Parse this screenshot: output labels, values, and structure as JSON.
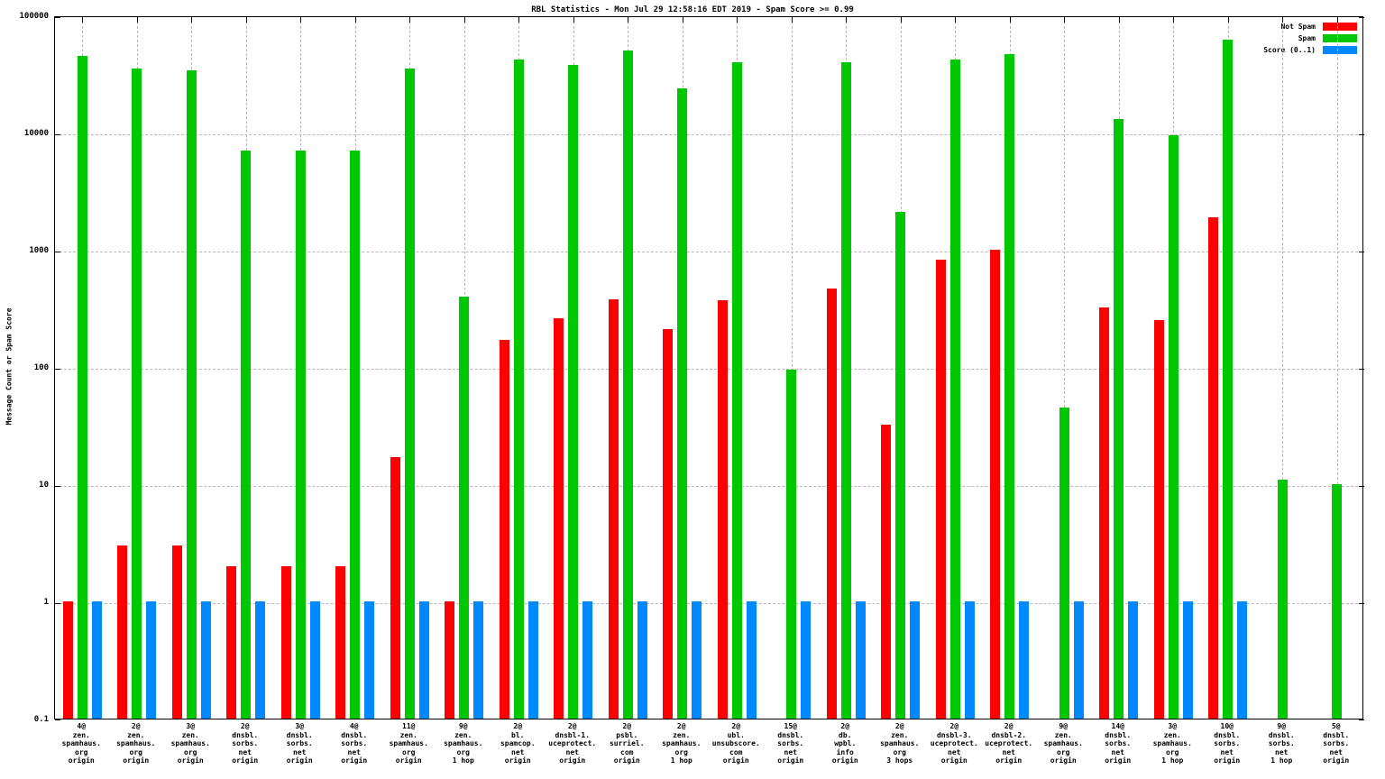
{
  "chart_data": {
    "type": "bar",
    "title": "RBL Statistics - Mon Jul 29 12:58:16 EDT 2019 - Spam Score >= 0.99",
    "ylabel": "Message Count or Spam Score",
    "y_scale": "log",
    "ylim": [
      0.1,
      100000
    ],
    "y_ticks": [
      "0.1",
      "1",
      "10",
      "100",
      "1000",
      "10000",
      "100000"
    ],
    "grid": true,
    "legend_position": "top-right",
    "colors": {
      "not_spam": "#ff0000",
      "spam": "#00c800",
      "score": "#0088ff",
      "grid": "#b8b8b8"
    },
    "legend": [
      {
        "label": "Not Spam",
        "color": "#ff0000"
      },
      {
        "label": "Spam",
        "color": "#00c800"
      },
      {
        "label": "Score (0..1)",
        "color": "#0088ff"
      }
    ],
    "categories": [
      [
        "4@",
        "zen.",
        "spamhaus.",
        "org",
        "origin"
      ],
      [
        "2@",
        "zen.",
        "spamhaus.",
        "org",
        "origin"
      ],
      [
        "3@",
        "zen.",
        "spamhaus.",
        "org",
        "origin"
      ],
      [
        "2@",
        "dnsbl.",
        "sorbs.",
        "net",
        "origin"
      ],
      [
        "3@",
        "dnsbl.",
        "sorbs.",
        "net",
        "origin"
      ],
      [
        "4@",
        "dnsbl.",
        "sorbs.",
        "net",
        "origin"
      ],
      [
        "11@",
        "zen.",
        "spamhaus.",
        "org",
        "origin"
      ],
      [
        "9@",
        "zen.",
        "spamhaus.",
        "org",
        "1 hop"
      ],
      [
        "2@",
        "bl.",
        "spamcop.",
        "net",
        "origin"
      ],
      [
        "2@",
        "dnsbl-1.",
        "uceprotect.",
        "net",
        "origin"
      ],
      [
        "2@",
        "psbl.",
        "surriel.",
        "com",
        "origin"
      ],
      [
        "2@",
        "zen.",
        "spamhaus.",
        "org",
        "1 hop"
      ],
      [
        "2@",
        "ubl.",
        "unsubscore.",
        "com",
        "origin"
      ],
      [
        "15@",
        "dnsbl.",
        "sorbs.",
        "net",
        "origin"
      ],
      [
        "2@",
        "db.",
        "wpbl.",
        "info",
        "origin"
      ],
      [
        "2@",
        "zen.",
        "spamhaus.",
        "org",
        "3 hops"
      ],
      [
        "2@",
        "dnsbl-3.",
        "uceprotect.",
        "net",
        "origin"
      ],
      [
        "2@",
        "dnsbl-2.",
        "uceprotect.",
        "net",
        "origin"
      ],
      [
        "9@",
        "zen.",
        "spamhaus.",
        "org",
        "origin"
      ],
      [
        "14@",
        "dnsbl.",
        "sorbs.",
        "net",
        "origin"
      ],
      [
        "3@",
        "zen.",
        "spamhaus.",
        "org",
        "1 hop"
      ],
      [
        "10@",
        "dnsbl.",
        "sorbs.",
        "net",
        "origin"
      ],
      [
        "9@",
        "dnsbl.",
        "sorbs.",
        "net",
        "1 hop"
      ],
      [
        "5@",
        "dnsbl.",
        "sorbs.",
        "net",
        "origin"
      ]
    ],
    "series": [
      {
        "name": "Not Spam",
        "color": "#ff0000",
        "values": [
          1,
          3,
          3,
          2,
          2,
          2,
          17,
          1,
          170,
          260,
          380,
          210,
          370,
          null,
          470,
          32,
          830,
          1000,
          null,
          320,
          250,
          1900,
          null,
          null
        ]
      },
      {
        "name": "Spam",
        "color": "#00c800",
        "values": [
          45000,
          35000,
          34000,
          7000,
          7000,
          7000,
          35000,
          400,
          42000,
          38000,
          50000,
          24000,
          40000,
          95,
          40000,
          2100,
          42000,
          47000,
          45,
          13000,
          9500,
          62000,
          11,
          10
        ]
      },
      {
        "name": "Score (0..1)",
        "color": "#0088ff",
        "values": [
          1,
          1,
          1,
          1,
          1,
          1,
          1,
          1,
          1,
          1,
          1,
          1,
          1,
          1,
          1,
          1,
          1,
          1,
          1,
          1,
          1,
          1,
          null,
          null
        ]
      }
    ]
  }
}
